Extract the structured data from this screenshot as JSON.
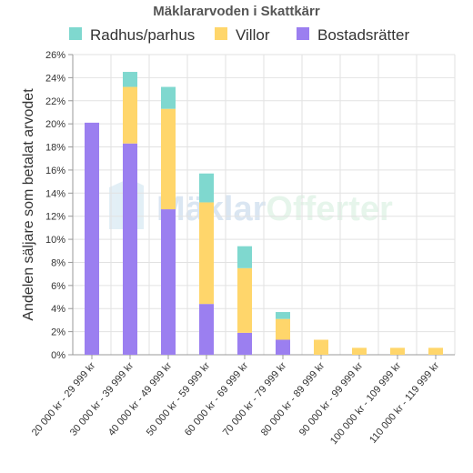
{
  "chart_data": {
    "type": "bar",
    "stacked": true,
    "title": "Mäklararvoden i Skattkärr",
    "ylabel": "Andelen säljare som betalat arvodet",
    "xlabel": "",
    "ylim": [
      0,
      26
    ],
    "y_ticks": [
      "0%",
      "2%",
      "4%",
      "6%",
      "8%",
      "10%",
      "12%",
      "14%",
      "16%",
      "18%",
      "20%",
      "22%",
      "24%",
      "26%"
    ],
    "grid": true,
    "legend_position": "top",
    "categories": [
      "20 000 kr - 29 999 kr",
      "30 000 kr - 39 999 kr",
      "40 000 kr - 49 999 kr",
      "50 000 kr - 59 999 kr",
      "60 000 kr - 69 999 kr",
      "70 000 kr - 79 999 kr",
      "80 000 kr - 89 999 kr",
      "90 000 kr - 99 999 kr",
      "100 000 kr - 109 999 kr",
      "110 000 kr - 119 999 kr"
    ],
    "series": [
      {
        "name": "Bostadsrätter",
        "color": "#9b7ff0",
        "values": [
          20.1,
          18.3,
          12.6,
          4.4,
          1.9,
          1.3,
          0,
          0,
          0,
          0
        ]
      },
      {
        "name": "Villor",
        "color": "#ffd66b",
        "values": [
          0,
          4.9,
          8.7,
          8.8,
          5.6,
          1.8,
          1.3,
          0.6,
          0.6,
          0.6
        ]
      },
      {
        "name": "Radhus/parhus",
        "color": "#7fd8cf",
        "values": [
          0,
          1.3,
          1.9,
          2.5,
          1.9,
          0.6,
          0,
          0,
          0,
          0
        ]
      }
    ],
    "legend_order": [
      "Radhus/parhus",
      "Villor",
      "Bostadsrätter"
    ],
    "watermark": "MäklarOfferter"
  }
}
